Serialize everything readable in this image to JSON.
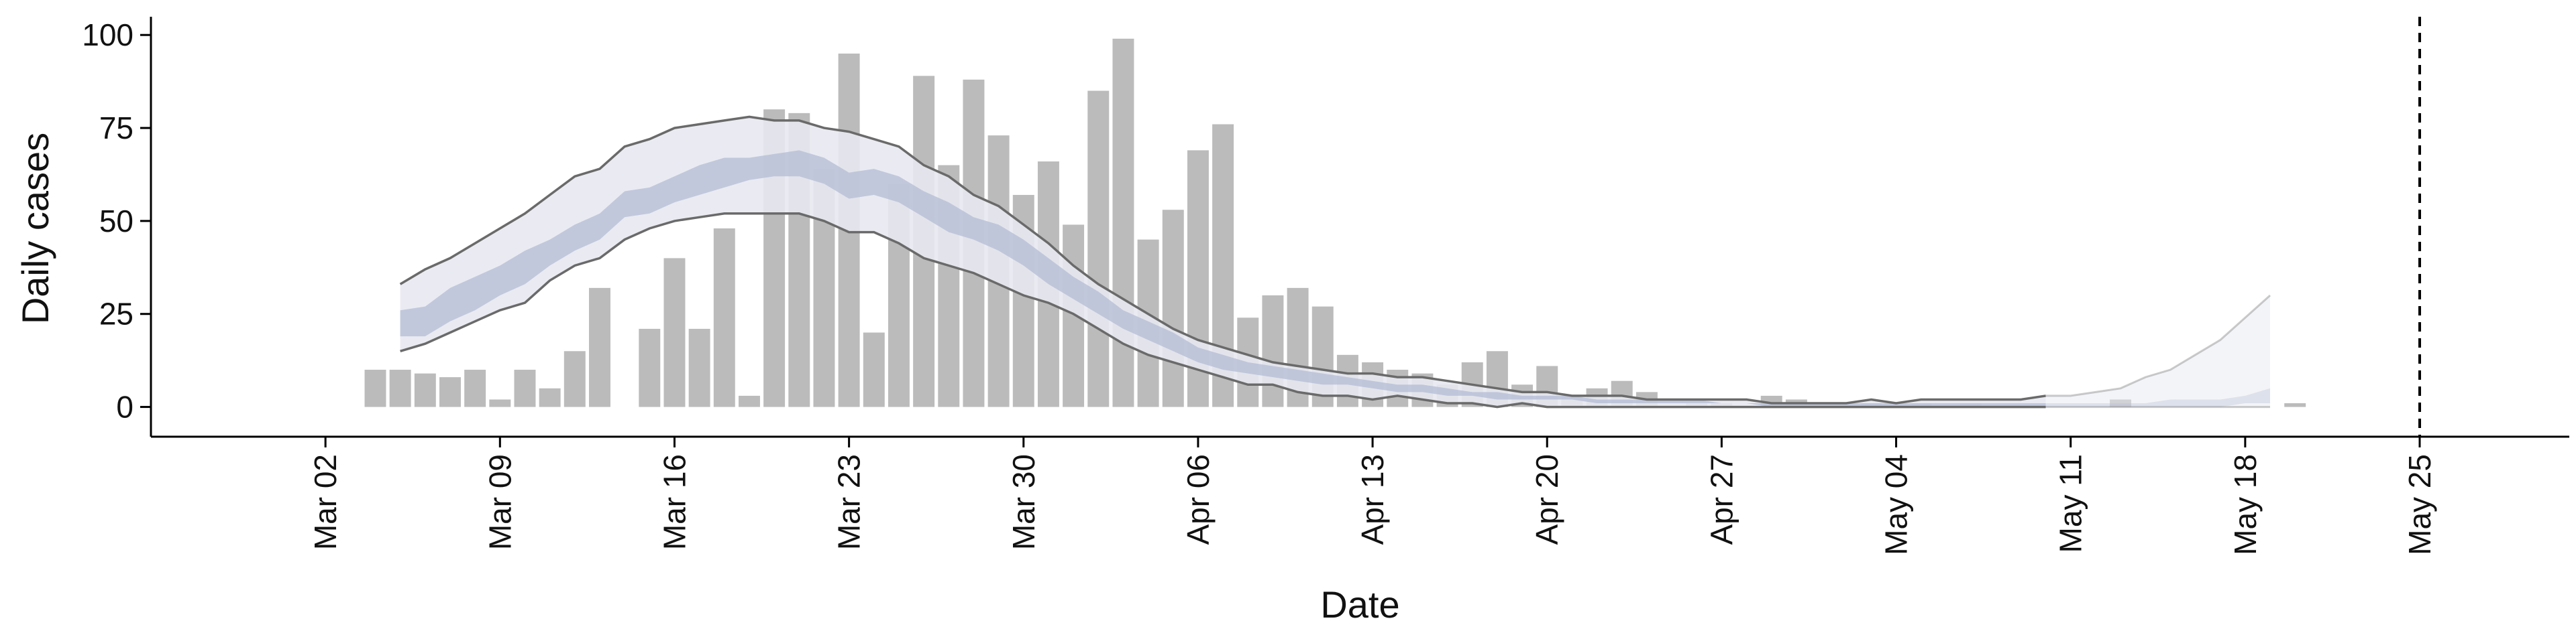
{
  "chart_data": {
    "type": "bar",
    "xlabel": "Date",
    "ylabel": "Daily cases",
    "ylim": [
      -8,
      104
    ],
    "yticks": [
      0,
      25,
      50,
      75,
      100
    ],
    "xlim": [
      "2020-02-24",
      "2020-05-31"
    ],
    "x_ticks": [
      {
        "date": "2020-03-02",
        "label": "Mar 02"
      },
      {
        "date": "2020-03-09",
        "label": "Mar 09"
      },
      {
        "date": "2020-03-16",
        "label": "Mar 16"
      },
      {
        "date": "2020-03-23",
        "label": "Mar 23"
      },
      {
        "date": "2020-03-30",
        "label": "Mar 30"
      },
      {
        "date": "2020-04-06",
        "label": "Apr 06"
      },
      {
        "date": "2020-04-13",
        "label": "Apr 13"
      },
      {
        "date": "2020-04-20",
        "label": "Apr 20"
      },
      {
        "date": "2020-04-27",
        "label": "Apr 27"
      },
      {
        "date": "2020-05-04",
        "label": "May 04"
      },
      {
        "date": "2020-05-11",
        "label": "May 11"
      },
      {
        "date": "2020-05-18",
        "label": "May 18"
      },
      {
        "date": "2020-05-25",
        "label": "May 25"
      }
    ],
    "vline_date": "2020-05-25",
    "bars": {
      "start_date": "2020-03-04",
      "values": [
        10,
        10,
        9,
        8,
        10,
        2,
        10,
        5,
        15,
        32,
        0,
        21,
        40,
        21,
        48,
        3,
        80,
        79,
        64,
        95,
        20,
        60,
        89,
        65,
        88,
        73,
        57,
        66,
        49,
        85,
        99,
        45,
        53,
        69,
        76,
        24,
        30,
        32,
        27,
        14,
        12,
        10,
        9,
        6,
        12,
        15,
        6,
        11,
        3,
        5,
        7,
        4,
        0,
        1,
        1,
        0,
        3,
        2,
        0,
        0,
        1,
        0,
        1,
        0,
        1,
        0,
        0,
        0,
        0,
        0,
        2,
        0,
        0,
        0,
        0,
        0,
        0,
        1,
        0,
        0,
        0,
        0,
        0,
        0,
        0,
        0,
        0,
        0,
        0,
        0,
        0,
        1,
        0,
        0,
        1
      ]
    },
    "bands": {
      "start_date": "2020-03-05",
      "outer_upper": [
        33,
        37,
        40,
        44,
        48,
        52,
        57,
        62,
        64,
        70,
        72,
        75,
        76,
        77,
        78,
        77,
        77,
        75,
        74,
        72,
        70,
        65,
        62,
        57,
        54,
        49,
        44,
        38,
        33,
        29,
        25,
        21,
        18,
        16,
        14,
        12,
        11,
        10,
        9,
        9,
        8,
        8,
        7,
        6,
        5,
        4,
        4,
        3,
        3,
        3,
        2,
        2,
        2,
        2,
        2,
        1,
        1,
        1,
        1,
        2,
        1,
        2,
        2,
        2,
        2,
        2,
        3,
        3,
        4,
        5,
        8,
        10,
        14,
        18,
        24,
        30
      ],
      "inner_upper": [
        26,
        27,
        32,
        35,
        38,
        42,
        45,
        49,
        52,
        58,
        59,
        62,
        65,
        67,
        67,
        68,
        69,
        67,
        63,
        64,
        62,
        58,
        55,
        51,
        49,
        45,
        40,
        35,
        31,
        26,
        23,
        20,
        16,
        14,
        12,
        11,
        10,
        9,
        8,
        7,
        6,
        6,
        5,
        4,
        4,
        3,
        3,
        3,
        2,
        2,
        2,
        2,
        2,
        1,
        1,
        1,
        1,
        1,
        1,
        1,
        1,
        1,
        1,
        1,
        1,
        1,
        1,
        1,
        1,
        1,
        1,
        2,
        2,
        2,
        3,
        5
      ],
      "inner_lower": [
        19,
        19,
        23,
        26,
        30,
        33,
        38,
        42,
        45,
        51,
        52,
        55,
        57,
        59,
        61,
        62,
        62,
        60,
        56,
        57,
        55,
        51,
        47,
        45,
        42,
        38,
        33,
        29,
        25,
        21,
        18,
        15,
        12,
        10,
        9,
        8,
        7,
        6,
        6,
        5,
        4,
        4,
        3,
        3,
        2,
        2,
        2,
        2,
        1,
        1,
        1,
        1,
        1,
        1,
        1,
        0,
        0,
        0,
        0,
        0,
        0,
        0,
        0,
        0,
        0,
        0,
        0,
        0,
        0,
        0,
        0,
        0,
        0,
        0,
        1,
        1
      ],
      "outer_lower": [
        15,
        17,
        20,
        23,
        26,
        28,
        34,
        38,
        40,
        45,
        48,
        50,
        51,
        52,
        52,
        52,
        52,
        50,
        47,
        47,
        44,
        40,
        38,
        36,
        33,
        30,
        28,
        25,
        21,
        17,
        14,
        12,
        10,
        8,
        6,
        6,
        4,
        3,
        3,
        2,
        3,
        2,
        1,
        1,
        0,
        1,
        0,
        0,
        0,
        0,
        0,
        0,
        0,
        0,
        0,
        0,
        0,
        0,
        0,
        0,
        0,
        0,
        0,
        0,
        0,
        0,
        0,
        0,
        0,
        0,
        0,
        0,
        0,
        0,
        0,
        0
      ],
      "faded_from_date": "2020-05-10"
    },
    "colors": {
      "bar": "#bbbbbb",
      "band_outer": "#e8e9f1",
      "band_inner": "#b4bcd4",
      "band_line": "#6a6a6a",
      "axis": "#000000"
    }
  }
}
